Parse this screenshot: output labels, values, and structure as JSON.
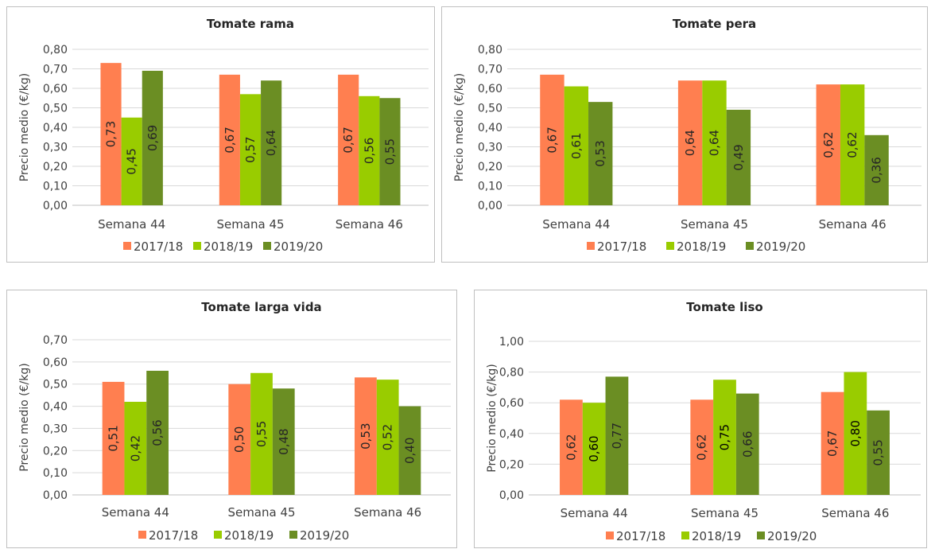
{
  "colors": {
    "series": [
      "#FF7F50",
      "#99CC00",
      "#6B8E23"
    ],
    "grid": "#d9d9d9",
    "axis": "#bfbfbf",
    "text": "#404040"
  },
  "chart_data": [
    {
      "type": "bar",
      "title": "Tomate rama",
      "ylabel": "Precio medio (€/kg)",
      "categories": [
        "Semana 44",
        "Semana 45",
        "Semana 46"
      ],
      "ylim": [
        0,
        0.8
      ],
      "yticks": [
        "0,00",
        "0,10",
        "0,20",
        "0,30",
        "0,40",
        "0,50",
        "0,60",
        "0,70",
        "0,80"
      ],
      "series": [
        {
          "name": "2017/18",
          "values": [
            0.73,
            0.67,
            0.67
          ],
          "labels": [
            "0,73",
            "0,67",
            "0,67"
          ]
        },
        {
          "name": "2018/19",
          "values": [
            0.45,
            0.57,
            0.56
          ],
          "labels": [
            "0,45",
            "0,57",
            "0,56"
          ]
        },
        {
          "name": "2019/20",
          "values": [
            0.69,
            0.64,
            0.55
          ],
          "labels": [
            "0,69",
            "0,64",
            "0,55"
          ]
        }
      ],
      "legend": "bottom",
      "grid": true
    },
    {
      "type": "bar",
      "title": "Tomate pera",
      "ylabel": "Precio medio (€/kg)",
      "categories": [
        "Semana 44",
        "Semana 45",
        "Semana 46"
      ],
      "ylim": [
        0,
        0.8
      ],
      "yticks": [
        "0,00",
        "0,10",
        "0,20",
        "0,30",
        "0,40",
        "0,50",
        "0,60",
        "0,70",
        "0,80"
      ],
      "series": [
        {
          "name": "2017/18",
          "values": [
            0.67,
            0.64,
            0.62
          ],
          "labels": [
            "0,67",
            "0,64",
            "0,62"
          ]
        },
        {
          "name": "2018/19",
          "values": [
            0.61,
            0.64,
            0.62
          ],
          "labels": [
            "0,61",
            "0,64",
            "0,62"
          ]
        },
        {
          "name": "2019/20",
          "values": [
            0.53,
            0.49,
            0.36
          ],
          "labels": [
            "0,53",
            "0,49",
            "0,36"
          ]
        }
      ],
      "legend": "bottom",
      "grid": true
    },
    {
      "type": "bar",
      "title": "Tomate larga vida",
      "ylabel": "Precio medio (€/kg)",
      "categories": [
        "Semana 44",
        "Semana 45",
        "Semana 46"
      ],
      "ylim": [
        0,
        0.7
      ],
      "yticks": [
        "0,00",
        "0,10",
        "0,20",
        "0,30",
        "0,40",
        "0,50",
        "0,60",
        "0,70"
      ],
      "series": [
        {
          "name": "2017/18",
          "values": [
            0.51,
            0.5,
            0.53
          ],
          "labels": [
            "0,51",
            "0,50",
            "0,53"
          ]
        },
        {
          "name": "2018/19",
          "values": [
            0.42,
            0.55,
            0.52
          ],
          "labels": [
            "0,42",
            "0,55",
            "0,52"
          ]
        },
        {
          "name": "2019/20",
          "values": [
            0.56,
            0.48,
            0.4
          ],
          "labels": [
            "0,56",
            "0,48",
            "0,40"
          ]
        }
      ],
      "legend": "bottom",
      "grid": true
    },
    {
      "type": "bar",
      "title": "Tomate liso",
      "ylabel": "Precio medio (€/kg)",
      "categories": [
        "Semana 44",
        "Semana 45",
        "Semana 46"
      ],
      "ylim": [
        0,
        1.0
      ],
      "yticks": [
        "0,00",
        "0,20",
        "0,40",
        "0,60",
        "0,80",
        "1,00"
      ],
      "series": [
        {
          "name": "2017/18",
          "values": [
            0.62,
            0.62,
            0.67
          ],
          "labels": [
            "0,62",
            "0,62",
            "0,67"
          ]
        },
        {
          "name": "2018/19",
          "values": [
            0.6,
            0.75,
            0.8
          ],
          "labels": [
            "0,60",
            "0,75",
            "0,80"
          ]
        },
        {
          "name": "2019/20",
          "values": [
            0.77,
            0.66,
            0.55
          ],
          "labels": [
            "0,77",
            "0,66",
            "0,55"
          ]
        }
      ],
      "legend": "bottom",
      "grid": true
    }
  ]
}
